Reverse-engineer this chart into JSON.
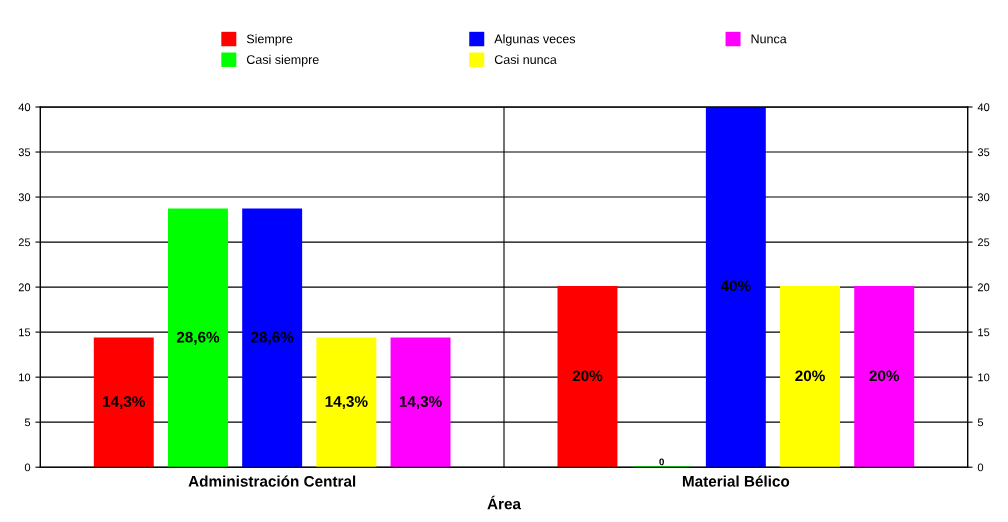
{
  "chart_data": {
    "type": "bar",
    "xlabel": "Área",
    "categories": [
      "Administración Central",
      "Material Bélico"
    ],
    "series": [
      {
        "name": "Siempre",
        "color": "#ff0000",
        "values": [
          14.3,
          20
        ],
        "value_labels": [
          "14,3%",
          "20%"
        ]
      },
      {
        "name": "Casi siempre",
        "color": "#00ff00",
        "values": [
          28.6,
          0
        ],
        "value_labels": [
          "28,6%",
          "0"
        ]
      },
      {
        "name": "Algunas veces",
        "color": "#0000ff",
        "values": [
          28.6,
          40
        ],
        "value_labels": [
          "28,6%",
          "40%"
        ]
      },
      {
        "name": "Casi nunca",
        "color": "#ffff00",
        "values": [
          14.3,
          20
        ],
        "value_labels": [
          "14,3%",
          "20%"
        ]
      },
      {
        "name": "Nunca",
        "color": "#ff00ff",
        "values": [
          14.3,
          20
        ],
        "value_labels": [
          "14,3%",
          "20%"
        ]
      }
    ],
    "ylim": [
      0,
      40
    ],
    "yticks": [
      0,
      5,
      10,
      15,
      20,
      25,
      30,
      35,
      40
    ],
    "y2lim": [
      0,
      40
    ],
    "y2ticks": [
      0,
      5,
      10,
      15,
      20,
      25,
      30,
      35,
      40
    ],
    "grid": true,
    "legend": "top"
  }
}
